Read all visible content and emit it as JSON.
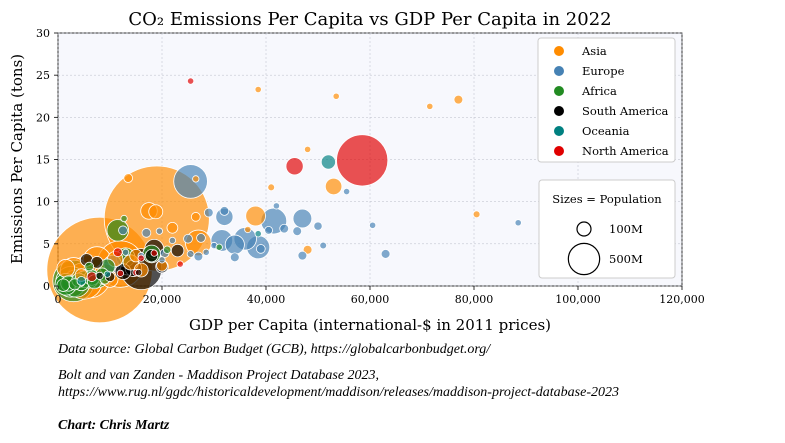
{
  "chart_data": {
    "type": "scatter",
    "title": "CO₂ Emissions Per Capita vs GDP Per Capita in 2022",
    "xlabel": "GDP per Capita (international-$ in 2011 prices)",
    "ylabel": "Emissions Per Capita (tons)",
    "xlim": [
      0,
      120000
    ],
    "ylim": [
      0,
      30
    ],
    "xticks": [
      0,
      20000,
      40000,
      60000,
      80000,
      100000,
      120000
    ],
    "xtick_labels": [
      "0",
      "20,000",
      "40,000",
      "60,000",
      "80,000",
      "100,000",
      "120,000"
    ],
    "yticks": [
      0,
      5,
      10,
      15,
      20,
      25,
      30
    ],
    "ytick_labels": [
      "0",
      "5",
      "10",
      "15",
      "20",
      "25",
      "30"
    ],
    "grid": true,
    "legend_placement": "top-right",
    "size_legend": {
      "title": "Sizes = Population",
      "entries": [
        {
          "label": "100M",
          "population": 100
        },
        {
          "label": "500M",
          "population": 500
        }
      ]
    },
    "series": [
      {
        "name": "Asia",
        "color": "#ff8c00",
        "points": [
          [
            19000,
            8.0,
            1410
          ],
          [
            38500,
            23.3,
            3
          ],
          [
            53500,
            22.5,
            3
          ],
          [
            71500,
            21.3,
            5
          ],
          [
            77000,
            22.1,
            10
          ],
          [
            48000,
            16.2,
            5
          ],
          [
            13500,
            12.8,
            10
          ],
          [
            26500,
            12.7,
            4
          ],
          [
            41000,
            11.7,
            6
          ],
          [
            53000,
            11.8,
            35
          ],
          [
            80500,
            8.5,
            6
          ],
          [
            38000,
            8.3,
            50
          ],
          [
            26500,
            8.2,
            10
          ],
          [
            17500,
            8.9,
            35
          ],
          [
            18800,
            8.8,
            25
          ],
          [
            36500,
            6.7,
            3
          ],
          [
            27000,
            5.1,
            85
          ],
          [
            48000,
            4.3,
            10
          ],
          [
            22000,
            6.9,
            15
          ],
          [
            7500,
            3.0,
            100
          ],
          [
            12000,
            2.6,
            275
          ],
          [
            15000,
            3.6,
            20
          ],
          [
            11000,
            3.2,
            30
          ],
          [
            8000,
            1.9,
            1420
          ],
          [
            6000,
            1.1,
            230
          ],
          [
            5000,
            0.6,
            170
          ],
          [
            9000,
            1.4,
            55
          ],
          [
            3000,
            1.8,
            90
          ],
          [
            1500,
            2.1,
            40
          ],
          [
            14000,
            2.8,
            30
          ],
          [
            10000,
            0.8,
            33
          ],
          [
            4500,
            1.3,
            20
          ],
          [
            16000,
            1.9,
            25
          ],
          [
            20000,
            2.4,
            15
          ]
        ]
      },
      {
        "name": "Europe",
        "color": "#4682b4",
        "points": [
          [
            25500,
            12.4,
            145
          ],
          [
            42000,
            9.5,
            5
          ],
          [
            47000,
            8.0,
            45
          ],
          [
            32000,
            8.2,
            38
          ],
          [
            32000,
            8.9,
            10
          ],
          [
            29000,
            8.7,
            10
          ],
          [
            50000,
            7.1,
            9
          ],
          [
            43500,
            6.8,
            10
          ],
          [
            46000,
            6.5,
            10
          ],
          [
            60500,
            7.2,
            5
          ],
          [
            88500,
            7.5,
            5
          ],
          [
            41500,
            7.7,
            85
          ],
          [
            40500,
            6.6,
            8
          ],
          [
            36000,
            5.6,
            65
          ],
          [
            31500,
            5.4,
            60
          ],
          [
            34000,
            4.9,
            47
          ],
          [
            38500,
            4.6,
            68
          ],
          [
            39000,
            4.4,
            10
          ],
          [
            51000,
            4.8,
            6
          ],
          [
            27500,
            5.7,
            10
          ],
          [
            25000,
            5.6,
            10
          ],
          [
            22000,
            5.4,
            4
          ],
          [
            28500,
            4.0,
            2
          ],
          [
            30000,
            4.8,
            4
          ],
          [
            34000,
            3.4,
            10
          ],
          [
            27000,
            3.5,
            10
          ],
          [
            25500,
            3.8,
            6
          ],
          [
            47000,
            3.6,
            10
          ],
          [
            63000,
            3.8,
            10
          ],
          [
            20500,
            3.9,
            10
          ],
          [
            16000,
            3.6,
            5
          ],
          [
            13000,
            4.0,
            3
          ],
          [
            10500,
            2.6,
            40
          ],
          [
            17000,
            6.3,
            10
          ],
          [
            19500,
            6.5,
            2
          ],
          [
            55500,
            11.2,
            1
          ],
          [
            20000,
            3.1,
            5
          ],
          [
            12500,
            6.6,
            10
          ]
        ]
      },
      {
        "name": "Africa",
        "color": "#228b22",
        "points": [
          [
            12700,
            8.0,
            4
          ],
          [
            11500,
            6.6,
            60
          ],
          [
            31000,
            4.6,
            2
          ],
          [
            21000,
            4.3,
            7
          ],
          [
            18000,
            3.8,
            40
          ],
          [
            13000,
            3.4,
            45
          ],
          [
            9500,
            2.3,
            30
          ],
          [
            7500,
            1.5,
            105
          ],
          [
            6000,
            0.9,
            48
          ],
          [
            4500,
            0.4,
            33
          ],
          [
            3000,
            0.6,
            220
          ],
          [
            2000,
            0.3,
            30
          ],
          [
            1500,
            0.2,
            60
          ],
          [
            2500,
            0.5,
            120
          ],
          [
            5000,
            0.8,
            35
          ],
          [
            6500,
            1.0,
            30
          ],
          [
            8500,
            1.4,
            20
          ],
          [
            3500,
            0.3,
            95
          ],
          [
            1000,
            0.1,
            20
          ],
          [
            4000,
            0.7,
            25
          ],
          [
            6000,
            2.3,
            10
          ],
          [
            7000,
            0.5,
            25
          ],
          [
            9000,
            0.8,
            12
          ],
          [
            3200,
            0.2,
            16
          ]
        ]
      },
      {
        "name": "South America",
        "color": "#000000",
        "points": [
          [
            23000,
            4.2,
            20
          ],
          [
            18500,
            4.4,
            46
          ],
          [
            18000,
            3.6,
            20
          ],
          [
            20000,
            2.3,
            20
          ],
          [
            14500,
            2.1,
            35
          ],
          [
            12500,
            1.7,
            32
          ],
          [
            13500,
            2.5,
            52
          ],
          [
            16000,
            2.0,
            215
          ],
          [
            5500,
            3.1,
            20
          ],
          [
            10000,
            1.1,
            12
          ],
          [
            8000,
            1.2,
            7
          ],
          [
            7500,
            2.8,
            18
          ],
          [
            15500,
            1.6,
            3
          ]
        ]
      },
      {
        "name": "Oceania",
        "color": "#008080",
        "points": [
          [
            52000,
            14.7,
            26
          ],
          [
            38500,
            6.2,
            5
          ],
          [
            9500,
            1.4,
            1
          ],
          [
            4500,
            0.6,
            10
          ]
        ]
      },
      {
        "name": "North America",
        "color": "#e00000",
        "points": [
          [
            58500,
            14.9,
            335
          ],
          [
            45500,
            14.2,
            38
          ],
          [
            25500,
            24.3,
            1
          ],
          [
            23500,
            2.6,
            5
          ],
          [
            18500,
            3.9,
            1
          ],
          [
            15000,
            1.6,
            5
          ],
          [
            11500,
            4.0,
            10
          ],
          [
            12000,
            1.5,
            2
          ],
          [
            6500,
            1.1,
            12
          ],
          [
            16000,
            3.3,
            3
          ]
        ]
      }
    ]
  },
  "footnotes": {
    "source_line1": "Data source: Global Carbon Budget (GCB), https://globalcarbonbudget.org/",
    "source_line2a": "Bolt and van Zanden - Maddison Project Database 2023,",
    "source_line2b": "https://www.rug.nl/ggdc/historicaldevelopment/maddison/releases/maddison-project-database-2023",
    "credit": "Chart: Chris Martz"
  }
}
